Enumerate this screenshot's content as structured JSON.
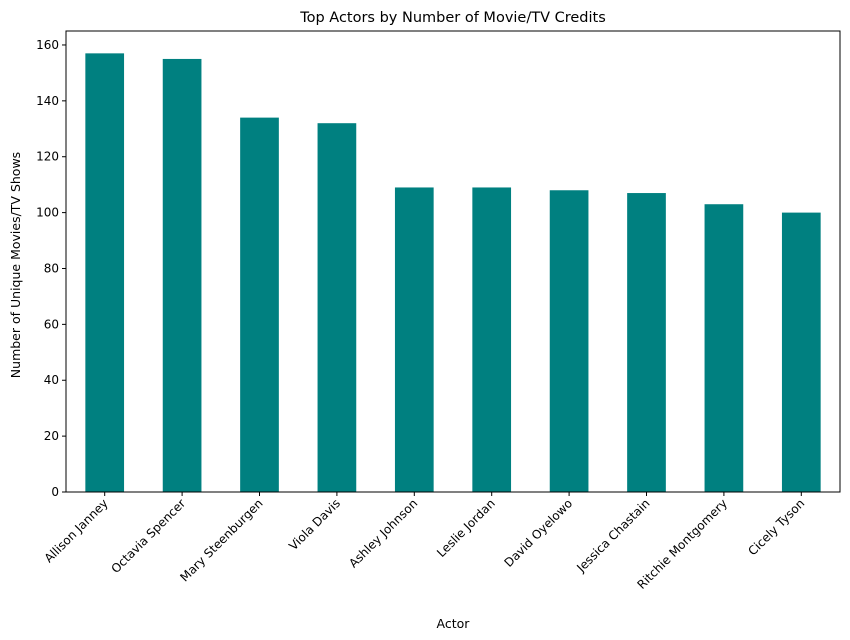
{
  "chart_data": {
    "type": "bar",
    "title": "Top Actors by Number of Movie/TV Credits",
    "xlabel": "Actor",
    "ylabel": "Number of Unique Movies/TV Shows",
    "categories": [
      "Allison Janney",
      "Octavia Spencer",
      "Mary Steenburgen",
      "Viola Davis",
      "Ashley Johnson",
      "Leslie Jordan",
      "David Oyelowo",
      "Jessica Chastain",
      "Ritchie Montgomery",
      "Cicely Tyson"
    ],
    "values": [
      157,
      155,
      134,
      132,
      109,
      109,
      108,
      107,
      103,
      100
    ],
    "ylim": [
      0,
      165
    ],
    "yticks": [
      0,
      20,
      40,
      60,
      80,
      100,
      120,
      140,
      160
    ],
    "bar_color": "#008080",
    "grid": false,
    "legend": "none"
  }
}
